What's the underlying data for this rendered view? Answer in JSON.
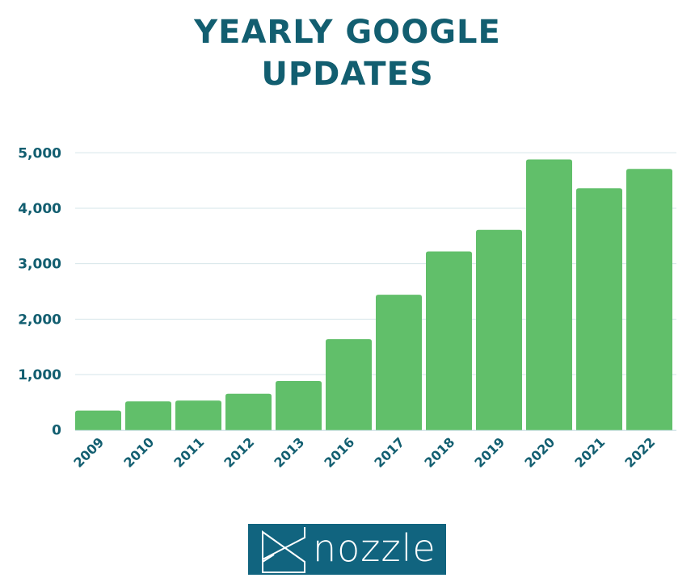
{
  "chart_data": {
    "type": "bar",
    "title": [
      "YEARLY GOOGLE",
      "UPDATES"
    ],
    "xlabel": "",
    "ylabel": "",
    "categories": [
      "2009",
      "2010",
      "2011",
      "2012",
      "2013",
      "2016",
      "2017",
      "2018",
      "2019",
      "2020",
      "2021",
      "2022"
    ],
    "values": [
      350,
      516,
      530,
      655,
      884,
      1640,
      2440,
      3220,
      3610,
      4880,
      4360,
      4710
    ],
    "ylim": [
      0,
      5000
    ],
    "yticks": [
      0,
      1000,
      2000,
      3000,
      4000,
      5000
    ],
    "ytick_labels": [
      "0",
      "1,000",
      "2,000",
      "3,000",
      "4,000",
      "5,000"
    ],
    "grid": true,
    "colors": {
      "bar": "#61bf6a",
      "text": "#125e70",
      "grid": "#d6e6ea"
    }
  },
  "logo": {
    "text": "nozzle",
    "color": "#11647f"
  }
}
